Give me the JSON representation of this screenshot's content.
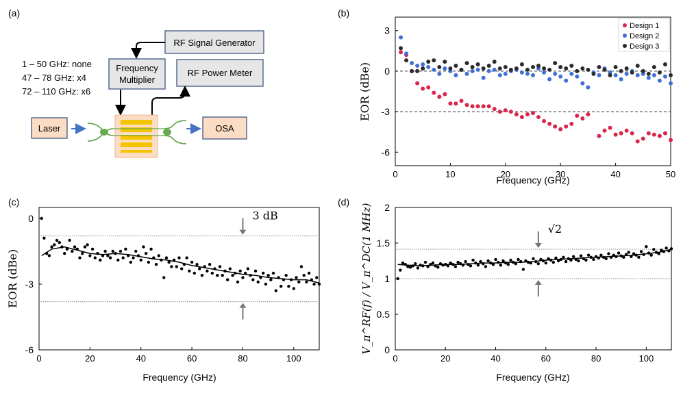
{
  "panels": {
    "a": "(a)",
    "b": "(b)",
    "c": "(c)",
    "d": "(d)"
  },
  "colors": {
    "design1": "#d9264a",
    "design2": "#3f6fd8",
    "design3": "#2b2b2b",
    "box_gray": "#e6e6e6",
    "box_border": "#2e4a7a",
    "peach": "#fbdcc4",
    "chip_pad": "#f5c400",
    "waveguide": "#6aa84f",
    "arrow_blue": "#4472c4",
    "ref_gray": "#777777"
  },
  "schematic": {
    "rf_signal_generator": "RF Signal Generator",
    "frequency_multiplier_line1": "Frequency",
    "frequency_multiplier_line2": "Multiplier",
    "rf_power_meter": "RF Power Meter",
    "laser": "Laser",
    "osa": "OSA",
    "band_notes": [
      "1 – 50 GHz: none",
      "47 – 78 GHz: x4",
      "72 – 110 GHz: x6"
    ]
  },
  "chart_data": [
    {
      "panel": "(b)",
      "type": "scatter",
      "xlabel": "Frequency (GHz)",
      "ylabel": "EOR (dBe)",
      "xlim": [
        0,
        50
      ],
      "ylim": [
        -7,
        4
      ],
      "xticks": [
        "0",
        "10",
        "20",
        "30",
        "40",
        "50"
      ],
      "yticks": [
        "3",
        "0",
        "-3",
        "-6"
      ],
      "ref_lines": [
        0,
        -3
      ],
      "legend_position": "top-right",
      "series": [
        {
          "name": "Design 1",
          "x": [
            1,
            2,
            3,
            4,
            5,
            6,
            7,
            8,
            9,
            10,
            11,
            12,
            13,
            14,
            15,
            16,
            17,
            18,
            19,
            20,
            21,
            22,
            23,
            24,
            25,
            26,
            27,
            28,
            29,
            30,
            31,
            32,
            33,
            34,
            35,
            37,
            38,
            39,
            40,
            41,
            42,
            43,
            44,
            45,
            46,
            47,
            48,
            49,
            50
          ],
          "y": [
            1.4,
            1.2,
            0.0,
            -0.9,
            -1.3,
            -1.2,
            -1.6,
            -1.9,
            -1.7,
            -2.4,
            -2.4,
            -2.2,
            -2.5,
            -2.6,
            -2.6,
            -2.6,
            -2.6,
            -2.8,
            -3.0,
            -2.9,
            -3.0,
            -3.2,
            -3.4,
            -3.2,
            -3.1,
            -3.4,
            -3.7,
            -3.9,
            -4.1,
            -4.3,
            -4.1,
            -3.9,
            -3.3,
            -3.5,
            -3.2,
            -4.8,
            -4.4,
            -4.2,
            -4.7,
            -4.6,
            -4.4,
            -4.6,
            -5.2,
            -5.0,
            -4.6,
            -4.7,
            -4.8,
            -4.6,
            -5.1
          ]
        },
        {
          "name": "Design 2",
          "x": [
            1,
            2,
            3,
            4,
            5,
            6,
            7,
            8,
            9,
            10,
            11,
            12,
            13,
            14,
            15,
            16,
            17,
            18,
            19,
            20,
            21,
            22,
            23,
            24,
            25,
            26,
            27,
            28,
            29,
            30,
            31,
            32,
            33,
            34,
            35,
            36,
            37,
            38,
            39,
            40,
            41,
            42,
            43,
            44,
            45,
            46,
            47,
            48,
            49,
            50
          ],
          "y": [
            2.5,
            1.3,
            0.6,
            0.4,
            0.5,
            0.3,
            0.1,
            -0.2,
            0.2,
            0.0,
            -0.3,
            0.1,
            -0.2,
            0.0,
            0.1,
            -0.5,
            0.0,
            0.1,
            -0.3,
            -0.2,
            0.0,
            0.1,
            -0.1,
            -0.2,
            -0.3,
            0.2,
            -0.1,
            -0.6,
            -0.2,
            -0.4,
            -0.7,
            -0.2,
            -0.4,
            -0.9,
            -1.2,
            -0.1,
            -0.3,
            0.2,
            -0.1,
            -0.3,
            -0.6,
            -0.2,
            0.0,
            -0.3,
            -0.2,
            -0.5,
            -0.3,
            -0.7,
            -0.4,
            -0.9
          ]
        },
        {
          "name": "Design 3",
          "x": [
            1,
            2,
            3,
            4,
            5,
            6,
            7,
            8,
            9,
            10,
            11,
            12,
            13,
            14,
            15,
            16,
            17,
            18,
            19,
            20,
            21,
            22,
            23,
            24,
            25,
            26,
            27,
            28,
            29,
            30,
            31,
            32,
            33,
            34,
            35,
            36,
            37,
            38,
            39,
            40,
            41,
            42,
            43,
            44,
            45,
            46,
            47,
            48,
            49,
            50
          ],
          "y": [
            1.7,
            0.8,
            0.0,
            0.0,
            0.2,
            0.7,
            0.8,
            0.3,
            0.7,
            0.2,
            0.4,
            0.1,
            0.6,
            0.3,
            0.5,
            0.2,
            0.4,
            0.7,
            0.2,
            0.3,
            0.1,
            0.2,
            0.5,
            0.1,
            0.3,
            0.4,
            0.2,
            0.1,
            0.6,
            0.3,
            0.2,
            0.4,
            0.0,
            0.2,
            0.1,
            -0.2,
            0.3,
            0.1,
            -0.3,
            0.3,
            0.0,
            0.2,
            -0.1,
            0.4,
            0.0,
            -0.2,
            0.3,
            -0.1,
            0.5,
            -0.3
          ]
        }
      ]
    },
    {
      "panel": "(c)",
      "type": "scatter",
      "xlabel": "Frequency (GHz)",
      "ylabel": "EOR (dBe)",
      "xlim": [
        0,
        110
      ],
      "ylim": [
        -6,
        0.5
      ],
      "xticks": [
        "0",
        "20",
        "40",
        "60",
        "80",
        "100"
      ],
      "yticks": [
        "0",
        "-3",
        "-6"
      ],
      "ref_lines": [
        -0.8,
        -3.8
      ],
      "annotation": "3 dB",
      "annotation_x": 80,
      "points_x": [
        1,
        2,
        3,
        4,
        5,
        6,
        7,
        8,
        9,
        10,
        11,
        12,
        13,
        14,
        15,
        16,
        17,
        18,
        19,
        20,
        21,
        22,
        23,
        24,
        25,
        26,
        27,
        28,
        29,
        30,
        31,
        32,
        33,
        34,
        35,
        36,
        37,
        38,
        39,
        40,
        41,
        42,
        43,
        44,
        45,
        46,
        47,
        48,
        49,
        50,
        51,
        52,
        53,
        54,
        55,
        56,
        57,
        58,
        59,
        60,
        61,
        62,
        63,
        64,
        65,
        66,
        67,
        68,
        69,
        70,
        71,
        72,
        73,
        74,
        75,
        76,
        77,
        78,
        79,
        80,
        81,
        82,
        83,
        84,
        85,
        86,
        87,
        88,
        89,
        90,
        91,
        92,
        93,
        94,
        95,
        96,
        97,
        98,
        99,
        100,
        101,
        102,
        103,
        104,
        105,
        106,
        107,
        108,
        109,
        110
      ],
      "points_y": [
        0.0,
        -0.9,
        -1.6,
        -1.7,
        -1.3,
        -1.2,
        -1.0,
        -1.1,
        -1.3,
        -1.6,
        -1.4,
        -1.0,
        -1.5,
        -1.3,
        -1.4,
        -1.8,
        -1.6,
        -1.3,
        -1.2,
        -1.7,
        -1.4,
        -1.8,
        -1.6,
        -1.9,
        -1.7,
        -1.5,
        -1.7,
        -1.8,
        -1.5,
        -1.6,
        -1.9,
        -1.5,
        -1.8,
        -1.4,
        -1.7,
        -2.0,
        -1.8,
        -1.5,
        -1.7,
        -1.9,
        -1.3,
        -1.6,
        -2.0,
        -1.4,
        -1.8,
        -2.1,
        -1.7,
        -1.9,
        -2.7,
        -1.8,
        -2.0,
        -2.2,
        -1.9,
        -2.2,
        -1.8,
        -2.3,
        -2.1,
        -1.8,
        -2.4,
        -2.0,
        -2.5,
        -2.1,
        -2.3,
        -2.6,
        -2.2,
        -2.4,
        -2.1,
        -2.5,
        -2.3,
        -2.6,
        -2.2,
        -2.6,
        -2.4,
        -2.8,
        -2.3,
        -2.6,
        -2.5,
        -2.9,
        -2.4,
        -2.7,
        -2.5,
        -2.3,
        -2.6,
        -2.8,
        -2.4,
        -2.9,
        -2.7,
        -2.5,
        -3.0,
        -2.6,
        -2.8,
        -2.5,
        -3.3,
        -2.7,
        -3.1,
        -2.8,
        -2.6,
        -3.1,
        -2.8,
        -3.2,
        -2.7,
        -2.9,
        -2.2,
        -2.6,
        -2.9,
        -2.5,
        -2.8,
        -3.0,
        -2.7,
        -3.0
      ],
      "trend_x": [
        1,
        5,
        10,
        15,
        20,
        25,
        30,
        35,
        40,
        45,
        50,
        55,
        60,
        65,
        70,
        75,
        80,
        85,
        90,
        95,
        100,
        105,
        110
      ],
      "trend_y": [
        -1.7,
        -1.4,
        -1.3,
        -1.45,
        -1.6,
        -1.65,
        -1.6,
        -1.65,
        -1.75,
        -1.85,
        -1.9,
        -2.0,
        -2.15,
        -2.25,
        -2.35,
        -2.45,
        -2.55,
        -2.6,
        -2.7,
        -2.75,
        -2.8,
        -2.8,
        -2.95
      ]
    },
    {
      "panel": "(d)",
      "type": "scatter",
      "xlabel": "Frequency (GHz)",
      "ylabel": "V_π^RF(f) / V_π^DC(1 MHz)",
      "xlim": [
        0,
        110
      ],
      "ylim": [
        0,
        2
      ],
      "xticks": [
        "0",
        "20",
        "40",
        "60",
        "80",
        "100"
      ],
      "yticks": [
        "0",
        "0.5",
        "1",
        "1.5",
        "2"
      ],
      "ref_lines": [
        1.0,
        1.414
      ],
      "annotation": "√2",
      "annotation_x": 57,
      "points_x": [
        1,
        2,
        3,
        4,
        5,
        6,
        7,
        8,
        9,
        10,
        11,
        12,
        13,
        14,
        15,
        16,
        17,
        18,
        19,
        20,
        21,
        22,
        23,
        24,
        25,
        26,
        27,
        28,
        29,
        30,
        31,
        32,
        33,
        34,
        35,
        36,
        37,
        38,
        39,
        40,
        41,
        42,
        43,
        44,
        45,
        46,
        47,
        48,
        49,
        50,
        51,
        52,
        53,
        54,
        55,
        56,
        57,
        58,
        59,
        60,
        61,
        62,
        63,
        64,
        65,
        66,
        67,
        68,
        69,
        70,
        71,
        72,
        73,
        74,
        75,
        76,
        77,
        78,
        79,
        80,
        81,
        82,
        83,
        84,
        85,
        86,
        87,
        88,
        89,
        90,
        91,
        92,
        93,
        94,
        95,
        96,
        97,
        98,
        99,
        100,
        101,
        102,
        103,
        104,
        105,
        106,
        107,
        108,
        109,
        110
      ],
      "points_y": [
        1.0,
        1.12,
        1.22,
        1.2,
        1.17,
        1.16,
        1.18,
        1.21,
        1.15,
        1.19,
        1.18,
        1.23,
        1.17,
        1.2,
        1.22,
        1.18,
        1.16,
        1.21,
        1.19,
        1.2,
        1.18,
        1.22,
        1.2,
        1.17,
        1.23,
        1.21,
        1.19,
        1.24,
        1.2,
        1.18,
        1.26,
        1.22,
        1.19,
        1.24,
        1.21,
        1.17,
        1.25,
        1.22,
        1.2,
        1.27,
        1.23,
        1.19,
        1.25,
        1.22,
        1.2,
        1.26,
        1.23,
        1.21,
        1.27,
        1.24,
        1.13,
        1.25,
        1.23,
        1.22,
        1.28,
        1.24,
        1.21,
        1.27,
        1.25,
        1.22,
        1.28,
        1.26,
        1.23,
        1.29,
        1.25,
        1.27,
        1.3,
        1.24,
        1.28,
        1.26,
        1.31,
        1.27,
        1.25,
        1.32,
        1.28,
        1.26,
        1.33,
        1.3,
        1.27,
        1.31,
        1.29,
        1.33,
        1.3,
        1.28,
        1.35,
        1.3,
        1.33,
        1.31,
        1.36,
        1.32,
        1.3,
        1.34,
        1.37,
        1.31,
        1.35,
        1.33,
        1.3,
        1.38,
        1.34,
        1.45,
        1.36,
        1.33,
        1.41,
        1.37,
        1.35,
        1.4,
        1.38,
        1.43,
        1.39,
        1.42
      ],
      "trend_x": [
        1,
        5,
        10,
        15,
        20,
        25,
        30,
        35,
        40,
        45,
        50,
        55,
        60,
        65,
        70,
        75,
        80,
        85,
        90,
        95,
        100,
        105,
        110
      ],
      "trend_y": [
        1.2,
        1.19,
        1.18,
        1.19,
        1.2,
        1.2,
        1.21,
        1.22,
        1.22,
        1.23,
        1.23,
        1.24,
        1.26,
        1.27,
        1.28,
        1.29,
        1.3,
        1.31,
        1.32,
        1.33,
        1.35,
        1.37,
        1.41
      ]
    }
  ]
}
